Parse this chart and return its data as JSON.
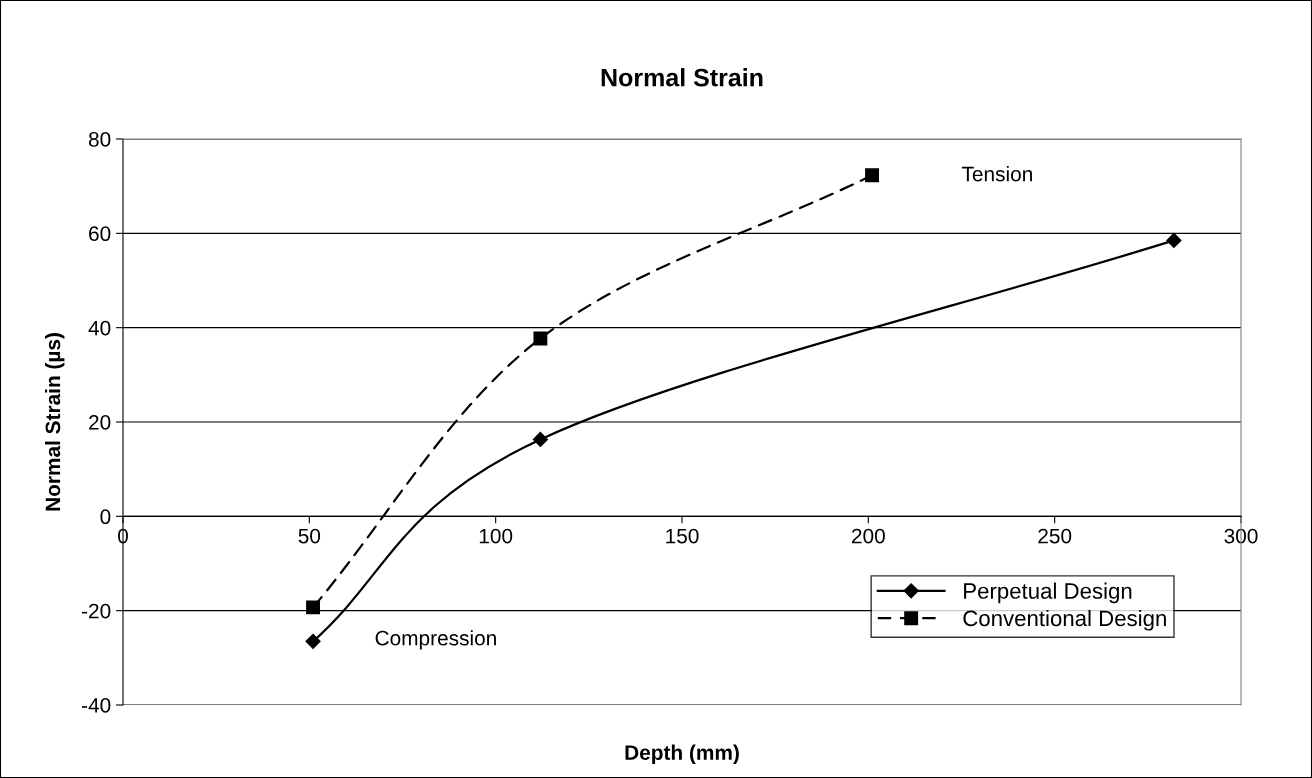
{
  "chart_data": {
    "type": "line",
    "title": "Normal Strain",
    "xlabel": "Depth (mm)",
    "ylabel": "Normal Strain (µs)",
    "series": [
      {
        "name": "Perpetual Design",
        "color": "#000000",
        "x": [
          51,
          112,
          282
        ],
        "values": [
          -26.5,
          16.3,
          58.5
        ],
        "marker": "diamond",
        "line_style": "solid"
      },
      {
        "name": "Conventional Design",
        "color": "#000000",
        "x": [
          51,
          112,
          201
        ],
        "values": [
          -19.3,
          37.7,
          72.3
        ],
        "marker": "square",
        "line_style": "dashed"
      }
    ],
    "xlim": [
      0,
      300
    ],
    "xticks": [
      0,
      50,
      100,
      150,
      200,
      250,
      300
    ],
    "ylim": [
      -40,
      80
    ],
    "yticks": [
      -40,
      -20,
      0,
      20,
      40,
      60,
      80
    ],
    "grid": "y",
    "legend": "bottom right",
    "annotations": [
      "Tension",
      "Compression"
    ]
  }
}
